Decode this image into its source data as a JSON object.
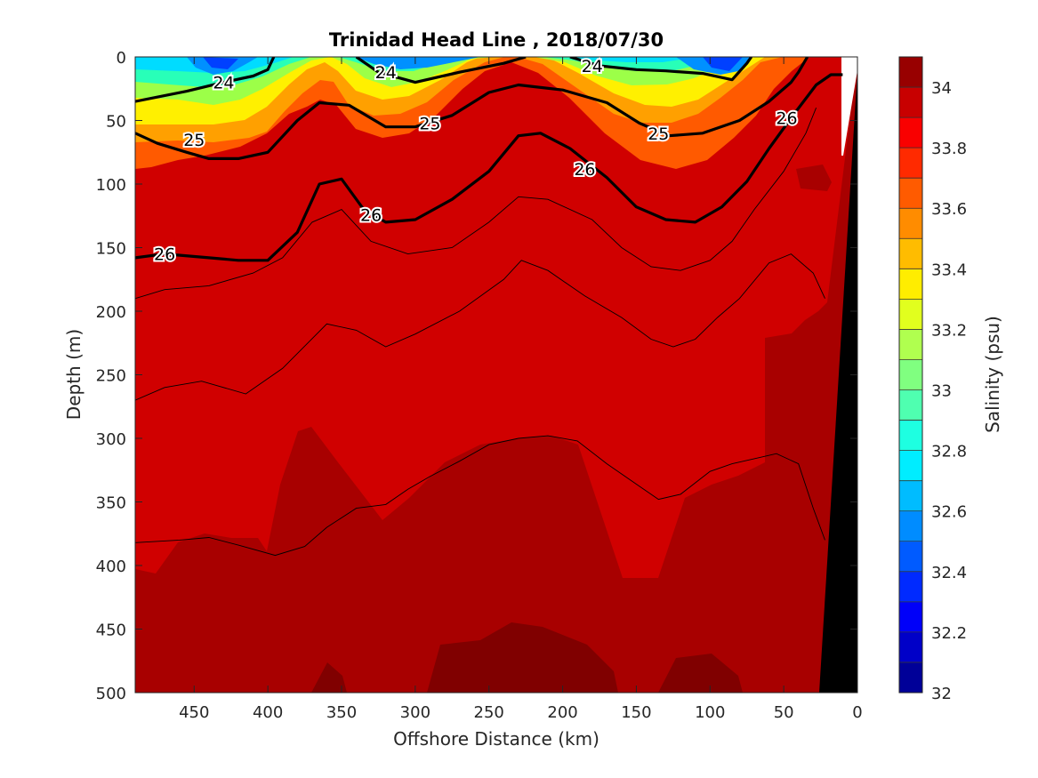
{
  "chart_data": {
    "type": "heatmap",
    "title": "Trinidad Head Line , 2018/07/30",
    "xlabel": "Offshore Distance (km)",
    "ylabel": "Depth (m)",
    "xlim": [
      490,
      0
    ],
    "ylim": [
      500,
      0
    ],
    "x_axis_reversed": true,
    "y_axis_reversed": true,
    "x_ticks": [
      450,
      400,
      350,
      300,
      250,
      200,
      150,
      100,
      50,
      0
    ],
    "y_ticks": [
      0,
      50,
      100,
      150,
      200,
      250,
      300,
      350,
      400,
      450,
      500
    ],
    "colorbar": {
      "label": "Salinity (psu)",
      "range": [
        32,
        34.1
      ],
      "ticks": [
        32,
        32.2,
        32.4,
        32.6,
        32.8,
        33,
        33.2,
        33.4,
        33.6,
        33.8,
        34
      ],
      "colormap": "jet"
    },
    "density_contours": [
      {
        "label": "24",
        "points": [
          [
            490,
            35
          ],
          [
            455,
            27
          ],
          [
            430,
            20
          ],
          [
            410,
            15
          ],
          [
            400,
            10
          ],
          [
            396,
            0
          ]
        ]
      },
      {
        "label": "24",
        "points": [
          [
            340,
            0
          ],
          [
            325,
            12
          ],
          [
            300,
            20
          ],
          [
            270,
            12
          ],
          [
            240,
            5
          ],
          [
            225,
            0
          ]
        ]
      },
      {
        "label": "24",
        "points": [
          [
            195,
            0
          ],
          [
            175,
            7
          ],
          [
            150,
            10
          ],
          [
            130,
            11
          ],
          [
            105,
            13
          ],
          [
            85,
            18
          ],
          [
            75,
            5
          ],
          [
            72,
            0
          ]
        ]
      },
      {
        "label": "25",
        "points": [
          [
            490,
            60
          ],
          [
            475,
            68
          ],
          [
            455,
            75
          ],
          [
            440,
            80
          ],
          [
            420,
            80
          ],
          [
            400,
            75
          ],
          [
            380,
            50
          ],
          [
            365,
            36
          ],
          [
            345,
            38
          ],
          [
            320,
            55
          ],
          [
            300,
            55
          ],
          [
            275,
            46
          ],
          [
            250,
            28
          ],
          [
            230,
            22
          ],
          [
            200,
            26
          ],
          [
            170,
            36
          ],
          [
            148,
            52
          ],
          [
            128,
            62
          ],
          [
            105,
            60
          ],
          [
            80,
            50
          ],
          [
            60,
            35
          ],
          [
            45,
            20
          ],
          [
            40,
            12
          ],
          [
            34,
            0
          ]
        ]
      },
      {
        "label": "26",
        "points": [
          [
            490,
            158
          ],
          [
            470,
            155
          ],
          [
            440,
            158
          ],
          [
            420,
            160
          ],
          [
            400,
            160
          ],
          [
            380,
            138
          ],
          [
            365,
            100
          ],
          [
            350,
            96
          ],
          [
            335,
            120
          ],
          [
            320,
            130
          ],
          [
            300,
            128
          ],
          [
            275,
            112
          ],
          [
            250,
            90
          ],
          [
            230,
            62
          ],
          [
            215,
            60
          ],
          [
            195,
            72
          ],
          [
            170,
            95
          ],
          [
            150,
            118
          ],
          [
            130,
            128
          ],
          [
            110,
            130
          ],
          [
            92,
            118
          ],
          [
            75,
            98
          ],
          [
            60,
            72
          ],
          [
            43,
            45
          ],
          [
            28,
            22
          ],
          [
            18,
            14
          ],
          [
            10,
            14
          ]
        ]
      }
    ],
    "salinity_isolines": [
      {
        "points": [
          [
            490,
            190
          ],
          [
            470,
            183
          ],
          [
            440,
            180
          ],
          [
            410,
            170
          ],
          [
            390,
            158
          ],
          [
            370,
            130
          ],
          [
            350,
            120
          ],
          [
            330,
            145
          ],
          [
            305,
            155
          ],
          [
            275,
            150
          ],
          [
            250,
            130
          ],
          [
            230,
            110
          ],
          [
            210,
            112
          ],
          [
            180,
            128
          ],
          [
            160,
            150
          ],
          [
            140,
            165
          ],
          [
            120,
            168
          ],
          [
            100,
            160
          ],
          [
            85,
            145
          ],
          [
            70,
            120
          ],
          [
            50,
            90
          ],
          [
            35,
            60
          ],
          [
            28,
            40
          ]
        ]
      },
      {
        "points": [
          [
            490,
            270
          ],
          [
            470,
            260
          ],
          [
            445,
            255
          ],
          [
            415,
            265
          ],
          [
            390,
            245
          ],
          [
            360,
            210
          ],
          [
            340,
            215
          ],
          [
            320,
            228
          ],
          [
            300,
            218
          ],
          [
            270,
            200
          ],
          [
            240,
            175
          ],
          [
            228,
            160
          ],
          [
            210,
            168
          ],
          [
            185,
            188
          ],
          [
            160,
            205
          ],
          [
            140,
            222
          ],
          [
            125,
            228
          ],
          [
            110,
            222
          ],
          [
            95,
            205
          ],
          [
            80,
            190
          ],
          [
            60,
            162
          ],
          [
            45,
            155
          ],
          [
            30,
            170
          ],
          [
            22,
            190
          ]
        ]
      },
      {
        "points": [
          [
            490,
            382
          ],
          [
            460,
            380
          ],
          [
            440,
            378
          ],
          [
            420,
            384
          ],
          [
            395,
            392
          ],
          [
            375,
            385
          ],
          [
            360,
            370
          ],
          [
            340,
            355
          ],
          [
            320,
            352
          ],
          [
            305,
            340
          ],
          [
            290,
            330
          ],
          [
            270,
            318
          ],
          [
            250,
            305
          ],
          [
            230,
            300
          ],
          [
            210,
            298
          ],
          [
            190,
            302
          ],
          [
            170,
            320
          ],
          [
            150,
            336
          ],
          [
            135,
            348
          ],
          [
            120,
            344
          ],
          [
            100,
            326
          ],
          [
            85,
            320
          ],
          [
            70,
            316
          ],
          [
            55,
            312
          ],
          [
            40,
            320
          ],
          [
            30,
            355
          ],
          [
            22,
            380
          ]
        ]
      }
    ]
  }
}
